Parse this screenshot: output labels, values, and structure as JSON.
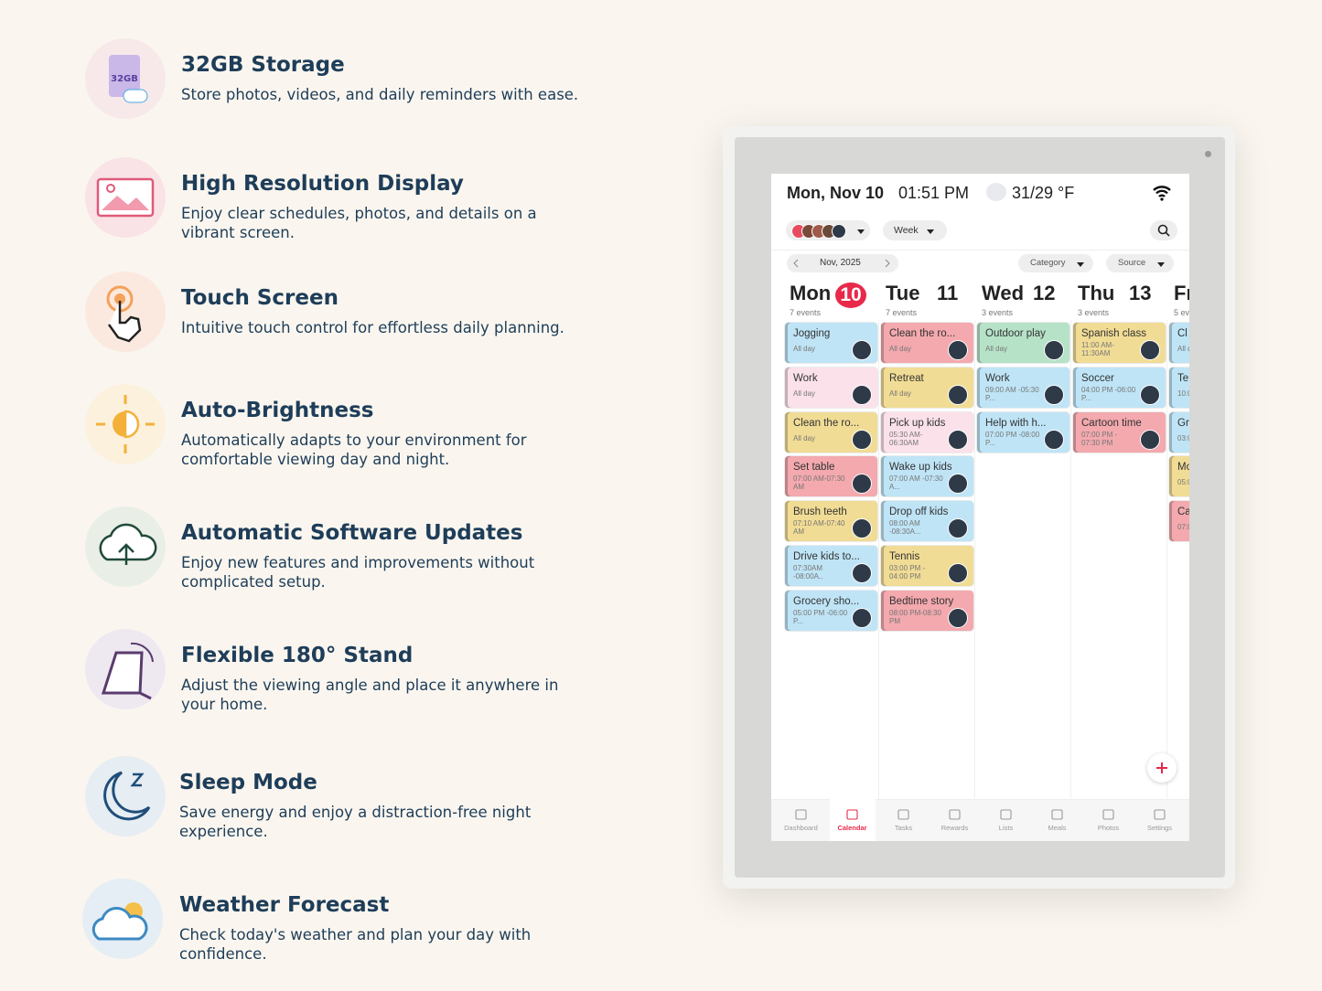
{
  "features": [
    {
      "title": "32GB Storage",
      "text": "Store photos, videos, and daily reminders with ease."
    },
    {
      "title": "High Resolution Display",
      "text": "Enjoy clear schedules, photos, and details on a vibrant screen."
    },
    {
      "title": "Touch Screen",
      "text": "Intuitive touch control for effortless daily planning."
    },
    {
      "title": "Auto-Brightness",
      "text": "Automatically adapts to your environment for comfortable viewing day and night."
    },
    {
      "title": "Automatic Software Updates",
      "text": "Enjoy new features and improvements without complicated setup."
    },
    {
      "title": "Flexible 180° Stand",
      "text": "Adjust the viewing angle and place it anywhere in your home."
    },
    {
      "title": "Sleep Mode",
      "text": "Save energy and enjoy a distraction-free night experience."
    },
    {
      "title": "Weather Forecast",
      "text": "Check today's weather and plan your day with confidence."
    }
  ],
  "icon_label": "32GB",
  "device": {
    "header": {
      "date": "Mon, Nov 10",
      "time": "01:51 PM",
      "weather": "31/29 °F"
    },
    "controls": {
      "view": "Week",
      "month": "Nov, 2025",
      "category": "Category",
      "source": "Source"
    },
    "days": [
      {
        "name": "Mon",
        "number": "10",
        "today": true,
        "count": "7 events",
        "events": [
          {
            "title": "Jogging",
            "time": "All day",
            "color": "#bfe4f6"
          },
          {
            "title": "Work",
            "time": "All day",
            "color": "#fbe1ea"
          },
          {
            "title": "Clean the ro...",
            "time": "All day",
            "color": "#f1dc95"
          },
          {
            "title": "Set table",
            "time": "07:00 AM-07:30 AM",
            "color": "#f3a9ae"
          },
          {
            "title": "Brush teeth",
            "time": "07:10 AM-07:40 AM",
            "color": "#f1dc95"
          },
          {
            "title": "Drive kids to...",
            "time": "07:30AM -08:00A..",
            "color": "#bfe4f6"
          },
          {
            "title": "Grocery sho...",
            "time": "05:00 PM -06:00 P...",
            "color": "#bfe4f6"
          }
        ]
      },
      {
        "name": "Tue",
        "number": "11",
        "today": false,
        "count": "7 events",
        "events": [
          {
            "title": "Clean the ro...",
            "time": "All day",
            "color": "#f3a9ae"
          },
          {
            "title": "Retreat",
            "time": "All day",
            "color": "#f1dc95"
          },
          {
            "title": "Pick up kids",
            "time": "05:30 AM-06:30AM",
            "color": "#fbe1ea"
          },
          {
            "title": "Wake up kids",
            "time": "07:00 AM -07:30 A...",
            "color": "#bfe4f6"
          },
          {
            "title": "Drop off kids",
            "time": "08:00 AM -08:30A...",
            "color": "#bfe4f6"
          },
          {
            "title": "Tennis",
            "time": "03:00 PM - 04:00 PM",
            "color": "#f1dc95"
          },
          {
            "title": "Bedtime story",
            "time": "08:00 PM-08:30 PM",
            "color": "#f3a9ae"
          }
        ]
      },
      {
        "name": "Wed",
        "number": "12",
        "today": false,
        "count": "3 events",
        "events": [
          {
            "title": "Outdoor play",
            "time": "All day",
            "color": "#b6e2c8"
          },
          {
            "title": "Work",
            "time": "09:00 AM -05:30 P...",
            "color": "#bfe4f6"
          },
          {
            "title": "Help with h...",
            "time": "07:00 PM -08:00 P...",
            "color": "#bfe4f6"
          }
        ]
      },
      {
        "name": "Thu",
        "number": "13",
        "today": false,
        "count": "3 events",
        "events": [
          {
            "title": "Spanish class",
            "time": "11:00 AM-11:30AM",
            "color": "#f1dc95"
          },
          {
            "title": "Soccer",
            "time": "04:00 PM -06:00 P...",
            "color": "#bfe4f6"
          },
          {
            "title": "Cartoon time",
            "time": "07:00 PM - 07:30 PM",
            "color": "#f3a9ae"
          }
        ]
      },
      {
        "name": "Fr",
        "count": "5 ev",
        "today": false,
        "events": [
          {
            "title": "Cl",
            "time": "All d",
            "color": "#bfe4f6"
          },
          {
            "title": "Te",
            "time": "10:0",
            "color": "#bfe4f6"
          },
          {
            "title": "Gr",
            "time": "03:0",
            "color": "#bfe4f6"
          },
          {
            "title": "Mo",
            "time": "05:0",
            "color": "#f1dc95"
          },
          {
            "title": "Ca",
            "time": "07:0",
            "color": "#f3a9ae"
          }
        ]
      }
    ],
    "nav": [
      "Dashboard",
      "Calendar",
      "Tasks",
      "Rewards",
      "Lists",
      "Meals",
      "Photos",
      "Settings"
    ],
    "active_nav": 1
  }
}
